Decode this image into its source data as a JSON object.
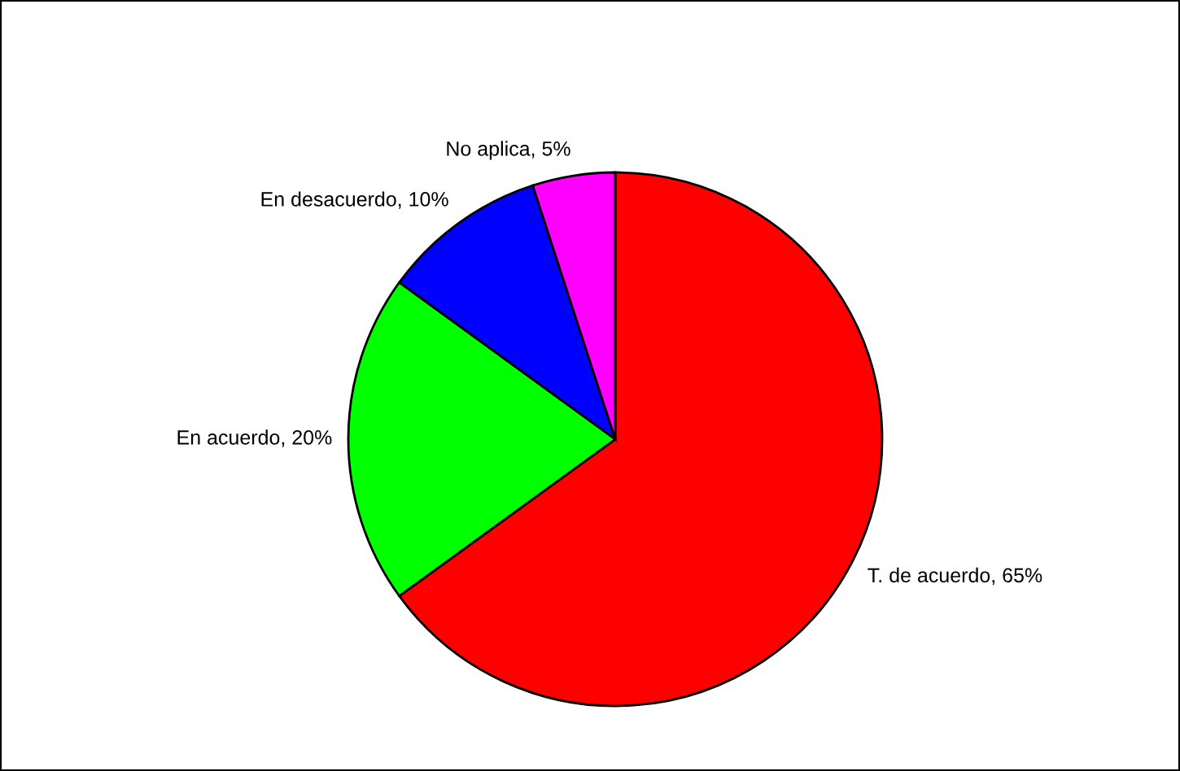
{
  "chart_data": {
    "type": "pie",
    "categories": [
      "T. de acuerdo",
      "En acuerdo",
      "En desacuerdo",
      "No aplica"
    ],
    "values": [
      65,
      20,
      10,
      5
    ],
    "value_labels": [
      "65%",
      "20%",
      "10%",
      "5%"
    ],
    "colors": [
      "#ff0000",
      "#00ff00",
      "#0000ff",
      "#ff00ff"
    ],
    "legend": false
  }
}
